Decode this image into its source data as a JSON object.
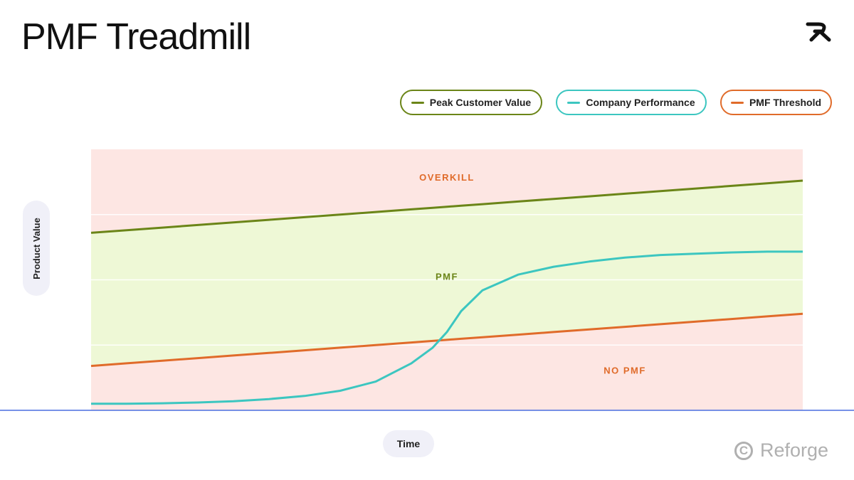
{
  "title": "PMF Treadmill",
  "brand": {
    "name": "Reforge",
    "logo_icon": "reforge-r-mark-icon",
    "copyright_icon": "copyright-c-icon"
  },
  "colors": {
    "peak": "#6b8518",
    "performance": "#3cc6c0",
    "threshold": "#e06b2a",
    "overkill_region": "#fde6e3",
    "pmf_region": "#eef8d6",
    "nopmf_region": "#fde6e3",
    "axis": "#4a6ee0"
  },
  "chart_data": {
    "type": "line",
    "title": "PMF Treadmill",
    "xlabel": "Time",
    "ylabel": "Product Value",
    "xlim": [
      0,
      100
    ],
    "ylim": [
      0,
      100
    ],
    "grid": true,
    "legend_position": "top-right",
    "x": [
      0,
      5,
      10,
      15,
      20,
      25,
      30,
      35,
      40,
      45,
      48,
      50,
      52,
      55,
      60,
      65,
      70,
      75,
      80,
      85,
      90,
      95,
      100
    ],
    "series": [
      {
        "name": "Peak Customer Value",
        "color": "#6b8518",
        "values": [
          68,
          69,
          70,
          71,
          72,
          73,
          74,
          75,
          76,
          77,
          77.6,
          78,
          78.4,
          79,
          80,
          81,
          82,
          83,
          84,
          85,
          86,
          87,
          88
        ]
      },
      {
        "name": "Company Performance",
        "color": "#3cc6c0",
        "values": [
          2.5,
          2.5,
          2.7,
          3.0,
          3.5,
          4.3,
          5.5,
          7.5,
          11,
          18,
          24,
          30,
          38,
          46,
          52,
          55,
          57,
          58.5,
          59.5,
          60,
          60.5,
          60.8,
          60.8
        ]
      },
      {
        "name": "PMF Threshold",
        "color": "#e06b2a",
        "values": [
          17,
          18,
          19,
          20,
          21,
          22,
          23,
          24,
          25,
          26,
          26.6,
          27,
          27.4,
          28,
          29,
          30,
          31,
          32,
          33,
          34,
          35,
          36,
          37
        ]
      }
    ],
    "regions": [
      {
        "label": "OVERKILL"
      },
      {
        "label": "PMF"
      },
      {
        "label": "NO PMF"
      }
    ]
  }
}
